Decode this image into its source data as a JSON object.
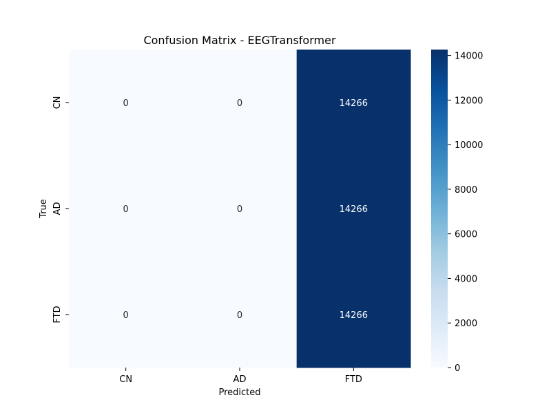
{
  "chart_data": {
    "type": "heatmap",
    "title": "Confusion Matrix - EEGTransformer",
    "xlabel": "Predicted",
    "ylabel": "True",
    "x_categories": [
      "CN",
      "AD",
      "FTD"
    ],
    "y_categories": [
      "CN",
      "AD",
      "FTD"
    ],
    "values": [
      [
        0,
        0,
        14266
      ],
      [
        0,
        0,
        14266
      ],
      [
        0,
        0,
        14266
      ]
    ],
    "colormap": "Blues",
    "color_low": "#f7fbff",
    "color_high": "#08306b",
    "annotation_dark_color": "#262626",
    "annotation_light_color": "#ffffff",
    "colorbar": {
      "range": [
        0,
        14266
      ],
      "ticks": [
        0,
        2000,
        4000,
        6000,
        8000,
        10000,
        12000,
        14000
      ],
      "tick_labels": [
        "0",
        "2000",
        "4000",
        "6000",
        "8000",
        "10000",
        "12000",
        "14000"
      ]
    }
  }
}
